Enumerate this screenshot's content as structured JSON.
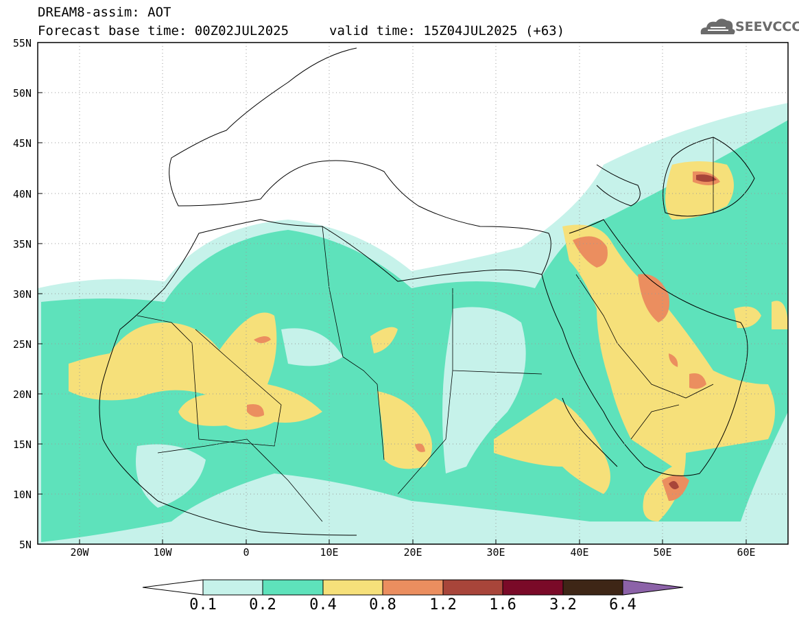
{
  "header": {
    "title": "DREAM8-assim: AOT",
    "base_time": "Forecast base time: 00Z02JUL2025",
    "valid_time": "valid time: 15Z04JUL2025 (+63)"
  },
  "logo": {
    "text": "SEEVCCC",
    "icon": "cloud-icon"
  },
  "map": {
    "lat_labels": [
      "55N",
      "50N",
      "45N",
      "40N",
      "35N",
      "30N",
      "25N",
      "20N",
      "15N",
      "10N",
      "5N"
    ],
    "lon_labels": [
      "20W",
      "10W",
      "0",
      "10E",
      "20E",
      "30E",
      "40E",
      "50E",
      "60E"
    ],
    "lon_range": [
      -25,
      65
    ],
    "lat_range": [
      5,
      55
    ]
  },
  "colorbar": {
    "levels": [
      "0.1",
      "0.2",
      "0.4",
      "0.8",
      "1.2",
      "1.6",
      "3.2",
      "6.4"
    ],
    "colors": [
      "#c6f2ea",
      "#5ee2bb",
      "#f6e07a",
      "#eb8e5f",
      "#a8453a",
      "#7a0a28",
      "#3e2616",
      "#8c62a8"
    ]
  },
  "colors": {
    "c01": "#c6f2ea",
    "c02": "#5ee2bb",
    "c04": "#f6e07a",
    "c08": "#eb8e5f",
    "c12": "#a8453a",
    "border": "#000000",
    "grid": "#9a9a9a"
  }
}
